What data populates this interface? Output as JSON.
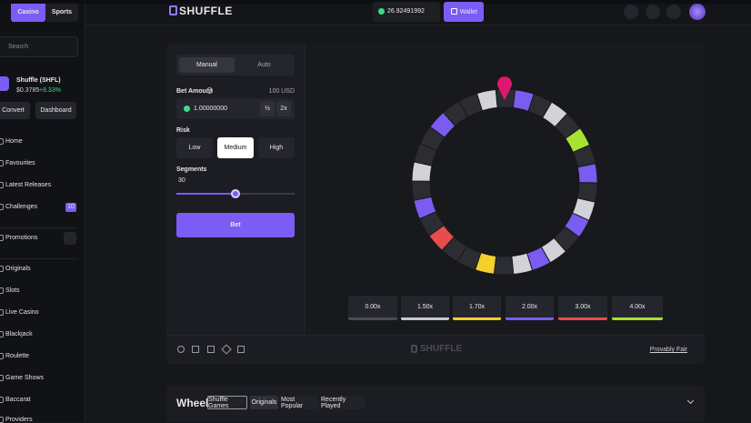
{
  "sidebar": {
    "tabs": [
      "Casino",
      "Sports"
    ],
    "search": "Search",
    "token": {
      "name": "Shuffle (SHFL)",
      "price": "$0.3785",
      "change": "+8.33%"
    },
    "buttons": [
      "Convert",
      "Dashboard"
    ],
    "nav": [
      {
        "label": "Home"
      },
      {
        "label": "Favourites"
      },
      {
        "label": "Latest Releases"
      },
      {
        "label": "Challenges",
        "badge": "10"
      },
      {
        "label": "Promotions"
      },
      {
        "label": "Originals"
      },
      {
        "label": "Slots"
      },
      {
        "label": "Live Casino"
      },
      {
        "label": "Blackjack"
      },
      {
        "label": "Roulette"
      },
      {
        "label": "Game Shows"
      },
      {
        "label": "Baccarat"
      },
      {
        "label": "Providers"
      }
    ]
  },
  "header": {
    "logo": "SHUFFLE",
    "balance": "26.92491992",
    "wallet": "Wallet"
  },
  "game": {
    "modes": [
      "Manual",
      "Auto"
    ],
    "bet_amount_label": "Bet Amount",
    "bet_usd": "100 USD",
    "bet_value": "1.00000000",
    "half": "½",
    "double": "2x",
    "risk_label": "Risk",
    "risk_options": [
      "Low",
      "Medium",
      "High"
    ],
    "segments_label": "Segments",
    "segments_value": "30",
    "bet_button": "Bet",
    "multipliers": [
      {
        "label": "0.00x",
        "color": "#4a4b53"
      },
      {
        "label": "1.50x",
        "color": "#c9cad0"
      },
      {
        "label": "1.70x",
        "color": "#f2cf2b"
      },
      {
        "label": "2.00x",
        "color": "#7a5cf0"
      },
      {
        "label": "3.00x",
        "color": "#e84c4c"
      },
      {
        "label": "4.00x",
        "color": "#a6e22e"
      }
    ],
    "footer_logo": "SHUFFLE",
    "provably_fair": "Provably Fair"
  },
  "bottom": {
    "title": "Wheel",
    "tags": [
      "Shuffle Games",
      "Originals",
      "Most Popular",
      "Recently Played"
    ]
  }
}
